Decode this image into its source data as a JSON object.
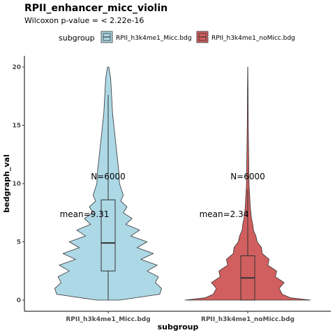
{
  "chart_data": {
    "type": "violin",
    "title": "RPII_enhancer_micc_violin",
    "subtitle": "Wilcoxon p-value = < 2.22e-16",
    "xlabel": "subgroup",
    "ylabel": "bedgraph_val",
    "ylim": [
      -0.5,
      21
    ],
    "yticks": [
      0,
      5,
      10,
      15,
      20
    ],
    "legend": {
      "title": "subgroup",
      "position": "top"
    },
    "grid": false,
    "categories": [
      "RPII_h3k4me1_Micc.bdg",
      "RPII_h3k4me1_noMicc.bdg"
    ],
    "series": [
      {
        "name": "RPII_h3k4me1_Micc.bdg",
        "color": "#add8e6",
        "n_label": "N=6000",
        "mean_label": "mean=9.31",
        "n": 6000,
        "mean": 9.31,
        "box": {
          "q1": 2.5,
          "median": 4.9,
          "q3": 8.6,
          "whisker_low": 0,
          "whisker_high": 17.6
        },
        "max": 20,
        "density_half_width": [
          [
            0,
            0.18
          ],
          [
            0.5,
            0.82
          ],
          [
            1.0,
            0.85
          ],
          [
            1.5,
            0.75
          ],
          [
            2.0,
            0.8
          ],
          [
            2.5,
            0.62
          ],
          [
            3.0,
            0.78
          ],
          [
            3.5,
            0.52
          ],
          [
            4.0,
            0.72
          ],
          [
            4.5,
            0.46
          ],
          [
            5.0,
            0.62
          ],
          [
            5.5,
            0.36
          ],
          [
            6.0,
            0.5
          ],
          [
            6.5,
            0.28
          ],
          [
            7.0,
            0.38
          ],
          [
            7.5,
            0.24
          ],
          [
            8.0,
            0.3
          ],
          [
            8.5,
            0.2
          ],
          [
            9.0,
            0.24
          ],
          [
            10,
            0.18
          ],
          [
            11,
            0.17
          ],
          [
            12,
            0.15
          ],
          [
            13,
            0.13
          ],
          [
            14,
            0.11
          ],
          [
            15,
            0.09
          ],
          [
            16,
            0.07
          ],
          [
            17,
            0.06
          ],
          [
            18,
            0.05
          ],
          [
            19,
            0.04
          ],
          [
            20,
            0.01
          ]
        ]
      },
      {
        "name": "RPII_h3k4me1_noMicc.bdg",
        "color": "#d15f5f",
        "n_label": "N=6000",
        "mean_label": "mean=2.34",
        "n": 6000,
        "mean": 2.34,
        "box": {
          "q1": 0,
          "median": 1.9,
          "q3": 3.8,
          "whisker_low": 0,
          "whisker_high": 9.5
        },
        "max": 20,
        "density_half_width": [
          [
            0,
            1.0
          ],
          [
            0.2,
            0.68
          ],
          [
            0.5,
            0.55
          ],
          [
            1.0,
            0.5
          ],
          [
            1.5,
            0.58
          ],
          [
            2.0,
            0.44
          ],
          [
            2.5,
            0.46
          ],
          [
            3.0,
            0.32
          ],
          [
            3.5,
            0.34
          ],
          [
            4.0,
            0.23
          ],
          [
            4.5,
            0.22
          ],
          [
            5.0,
            0.15
          ],
          [
            5.5,
            0.13
          ],
          [
            6.0,
            0.09
          ],
          [
            6.5,
            0.08
          ],
          [
            7.0,
            0.06
          ],
          [
            8.0,
            0.04
          ],
          [
            9.0,
            0.03
          ],
          [
            10,
            0.02
          ],
          [
            12,
            0.015
          ],
          [
            15,
            0.008
          ],
          [
            18,
            0.004
          ],
          [
            20,
            0.001
          ]
        ]
      }
    ]
  }
}
